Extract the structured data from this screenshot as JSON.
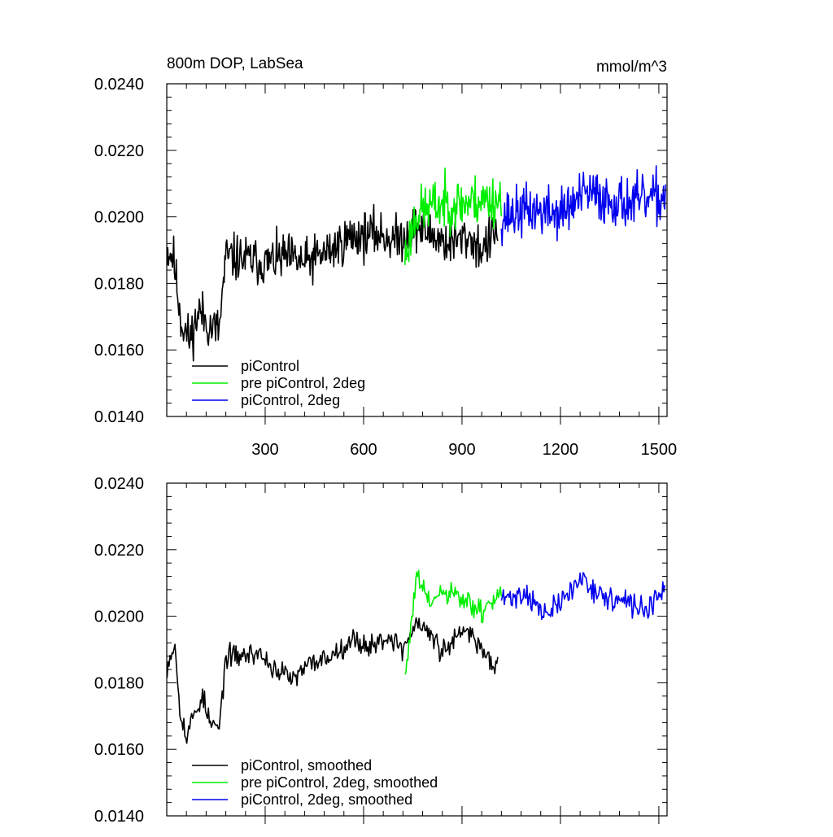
{
  "figure": {
    "title": "800m DOP, LabSea",
    "units": "mmol/m^3"
  },
  "chart_data": [
    {
      "type": "line",
      "title": "800m DOP, LabSea",
      "units": "mmol/m^3",
      "xlim": [
        0,
        1525
      ],
      "ylim": [
        0.014,
        0.024
      ],
      "x_major_ticks": [
        300,
        600,
        900,
        1200,
        1500
      ],
      "x_tick_labels": [
        "300",
        "600",
        "900",
        "1200",
        "1500"
      ],
      "y_major_ticks": [
        0.014,
        0.016,
        0.018,
        0.02,
        0.022,
        0.024
      ],
      "y_tick_labels": [
        "0.0140",
        "0.0160",
        "0.0180",
        "0.0200",
        "0.0220",
        "0.0240"
      ],
      "legend_position": "bottom-left",
      "series": [
        {
          "name": "piControl",
          "color": "#000000",
          "x_start": 1,
          "x_end": 1010,
          "step": 2,
          "anchors": [
            [
              1,
              0.019
            ],
            [
              20,
              0.0188
            ],
            [
              45,
              0.0168
            ],
            [
              70,
              0.0163
            ],
            [
              100,
              0.0172
            ],
            [
              130,
              0.0167
            ],
            [
              160,
              0.0166
            ],
            [
              180,
              0.0188
            ],
            [
              260,
              0.0187
            ],
            [
              300,
              0.0186
            ],
            [
              360,
              0.0188
            ],
            [
              420,
              0.0186
            ],
            [
              500,
              0.019
            ],
            [
              560,
              0.0194
            ],
            [
              640,
              0.0195
            ],
            [
              700,
              0.0193
            ],
            [
              760,
              0.0197
            ],
            [
              800,
              0.0195
            ],
            [
              860,
              0.0192
            ],
            [
              920,
              0.0194
            ],
            [
              960,
              0.019
            ],
            [
              1010,
              0.0196
            ]
          ],
          "amplitude": 0.00105,
          "seed": 11
        },
        {
          "name": "pre piControl, 2deg",
          "color": "#00ee00",
          "x_start": 726,
          "x_end": 1020,
          "step": 2,
          "anchors": [
            [
              726,
              0.0188
            ],
            [
              760,
              0.0201
            ],
            [
              800,
              0.0203
            ],
            [
              850,
              0.0204
            ],
            [
              900,
              0.0204
            ],
            [
              950,
              0.0205
            ],
            [
              1020,
              0.0205
            ]
          ],
          "amplitude": 0.00115,
          "seed": 23
        },
        {
          "name": "piControl, 2deg",
          "color": "#0000ee",
          "x_start": 1020,
          "x_end": 1520,
          "step": 2,
          "anchors": [
            [
              1020,
              0.02
            ],
            [
              1100,
              0.0202
            ],
            [
              1200,
              0.0201
            ],
            [
              1280,
              0.0207
            ],
            [
              1350,
              0.0205
            ],
            [
              1420,
              0.0204
            ],
            [
              1520,
              0.0206
            ]
          ],
          "amplitude": 0.00115,
          "seed": 37
        }
      ]
    },
    {
      "type": "line",
      "xlim": [
        0,
        1525
      ],
      "ylim": [
        0.014,
        0.024
      ],
      "x_major_ticks": [
        300,
        600,
        900,
        1200,
        1500
      ],
      "y_major_ticks": [
        0.014,
        0.016,
        0.018,
        0.02,
        0.022,
        0.024
      ],
      "y_tick_labels": [
        "0.0140",
        "0.0160",
        "0.0180",
        "0.0200",
        "0.0220",
        "0.0240"
      ],
      "legend_position": "bottom-left",
      "series": [
        {
          "name": "piControl, smoothed",
          "color": "#000000",
          "x_start": 1,
          "x_end": 1010,
          "step": 3,
          "anchors": [
            [
              1,
              0.0185
            ],
            [
              15,
              0.019
            ],
            [
              25,
              0.0191
            ],
            [
              40,
              0.0173
            ],
            [
              60,
              0.0163
            ],
            [
              80,
              0.017
            ],
            [
              110,
              0.0176
            ],
            [
              130,
              0.0168
            ],
            [
              160,
              0.0166
            ],
            [
              180,
              0.0188
            ],
            [
              220,
              0.0188
            ],
            [
              280,
              0.0189
            ],
            [
              330,
              0.0184
            ],
            [
              390,
              0.0181
            ],
            [
              440,
              0.0186
            ],
            [
              500,
              0.0188
            ],
            [
              560,
              0.0193
            ],
            [
              620,
              0.0191
            ],
            [
              680,
              0.0194
            ],
            [
              720,
              0.019
            ],
            [
              760,
              0.0198
            ],
            [
              800,
              0.0195
            ],
            [
              840,
              0.0189
            ],
            [
              880,
              0.0193
            ],
            [
              920,
              0.0196
            ],
            [
              960,
              0.019
            ],
            [
              1000,
              0.0185
            ],
            [
              1010,
              0.0189
            ]
          ],
          "amplitude": 0.0005,
          "seed": 53
        },
        {
          "name": "pre piControl, 2deg, smoothed",
          "color": "#00ee00",
          "x_start": 726,
          "x_end": 1020,
          "step": 3,
          "anchors": [
            [
              726,
              0.0182
            ],
            [
              740,
              0.0192
            ],
            [
              760,
              0.0212
            ],
            [
              800,
              0.0204
            ],
            [
              850,
              0.0207
            ],
            [
              900,
              0.0205
            ],
            [
              960,
              0.0201
            ],
            [
              1020,
              0.0208
            ]
          ],
          "amplitude": 0.00055,
          "seed": 61
        },
        {
          "name": "piControl, 2deg, smoothed",
          "color": "#0000ee",
          "x_start": 1020,
          "x_end": 1520,
          "step": 3,
          "anchors": [
            [
              1020,
              0.0205
            ],
            [
              1100,
              0.0207
            ],
            [
              1150,
              0.02
            ],
            [
              1200,
              0.0204
            ],
            [
              1270,
              0.0212
            ],
            [
              1320,
              0.0206
            ],
            [
              1400,
              0.0204
            ],
            [
              1460,
              0.0202
            ],
            [
              1520,
              0.0207
            ]
          ],
          "amplitude": 0.00055,
          "seed": 71
        }
      ]
    }
  ]
}
